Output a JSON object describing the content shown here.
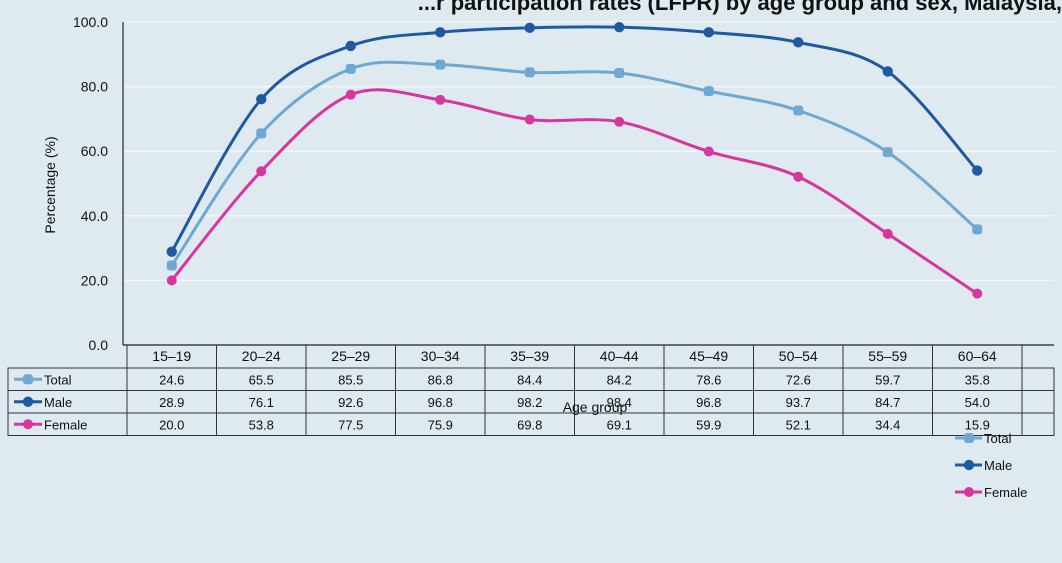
{
  "chart_data": {
    "type": "line",
    "title": "...r participation rates (LFPR) by age group and sex, Malaysia,",
    "xlabel": "Age group",
    "ylabel": "Percentage (%)",
    "ylim": [
      0,
      100
    ],
    "yticks": [
      "0.0",
      "20.0",
      "40.0",
      "60.0",
      "80.0",
      "100.0"
    ],
    "categories": [
      "15–19",
      "20–24",
      "25–29",
      "30–34",
      "35–39",
      "40–44",
      "45–49",
      "50–54",
      "55–59",
      "60–64"
    ],
    "series": [
      {
        "name": "Total",
        "color": "#6fa8d2",
        "values": [
          24.6,
          65.5,
          85.5,
          86.8,
          84.4,
          84.2,
          78.6,
          72.6,
          59.7,
          35.8
        ]
      },
      {
        "name": "Male",
        "color": "#1f5aa0",
        "values": [
          28.9,
          76.1,
          92.6,
          96.8,
          98.2,
          98.4,
          96.8,
          93.7,
          84.7,
          54.0
        ]
      },
      {
        "name": "Female",
        "color": "#d6379e",
        "values": [
          20.0,
          53.8,
          77.5,
          75.9,
          69.8,
          69.1,
          59.9,
          52.1,
          34.4,
          15.9
        ]
      }
    ],
    "grid": true,
    "legend_position": "bottom-right",
    "data_table": true
  }
}
